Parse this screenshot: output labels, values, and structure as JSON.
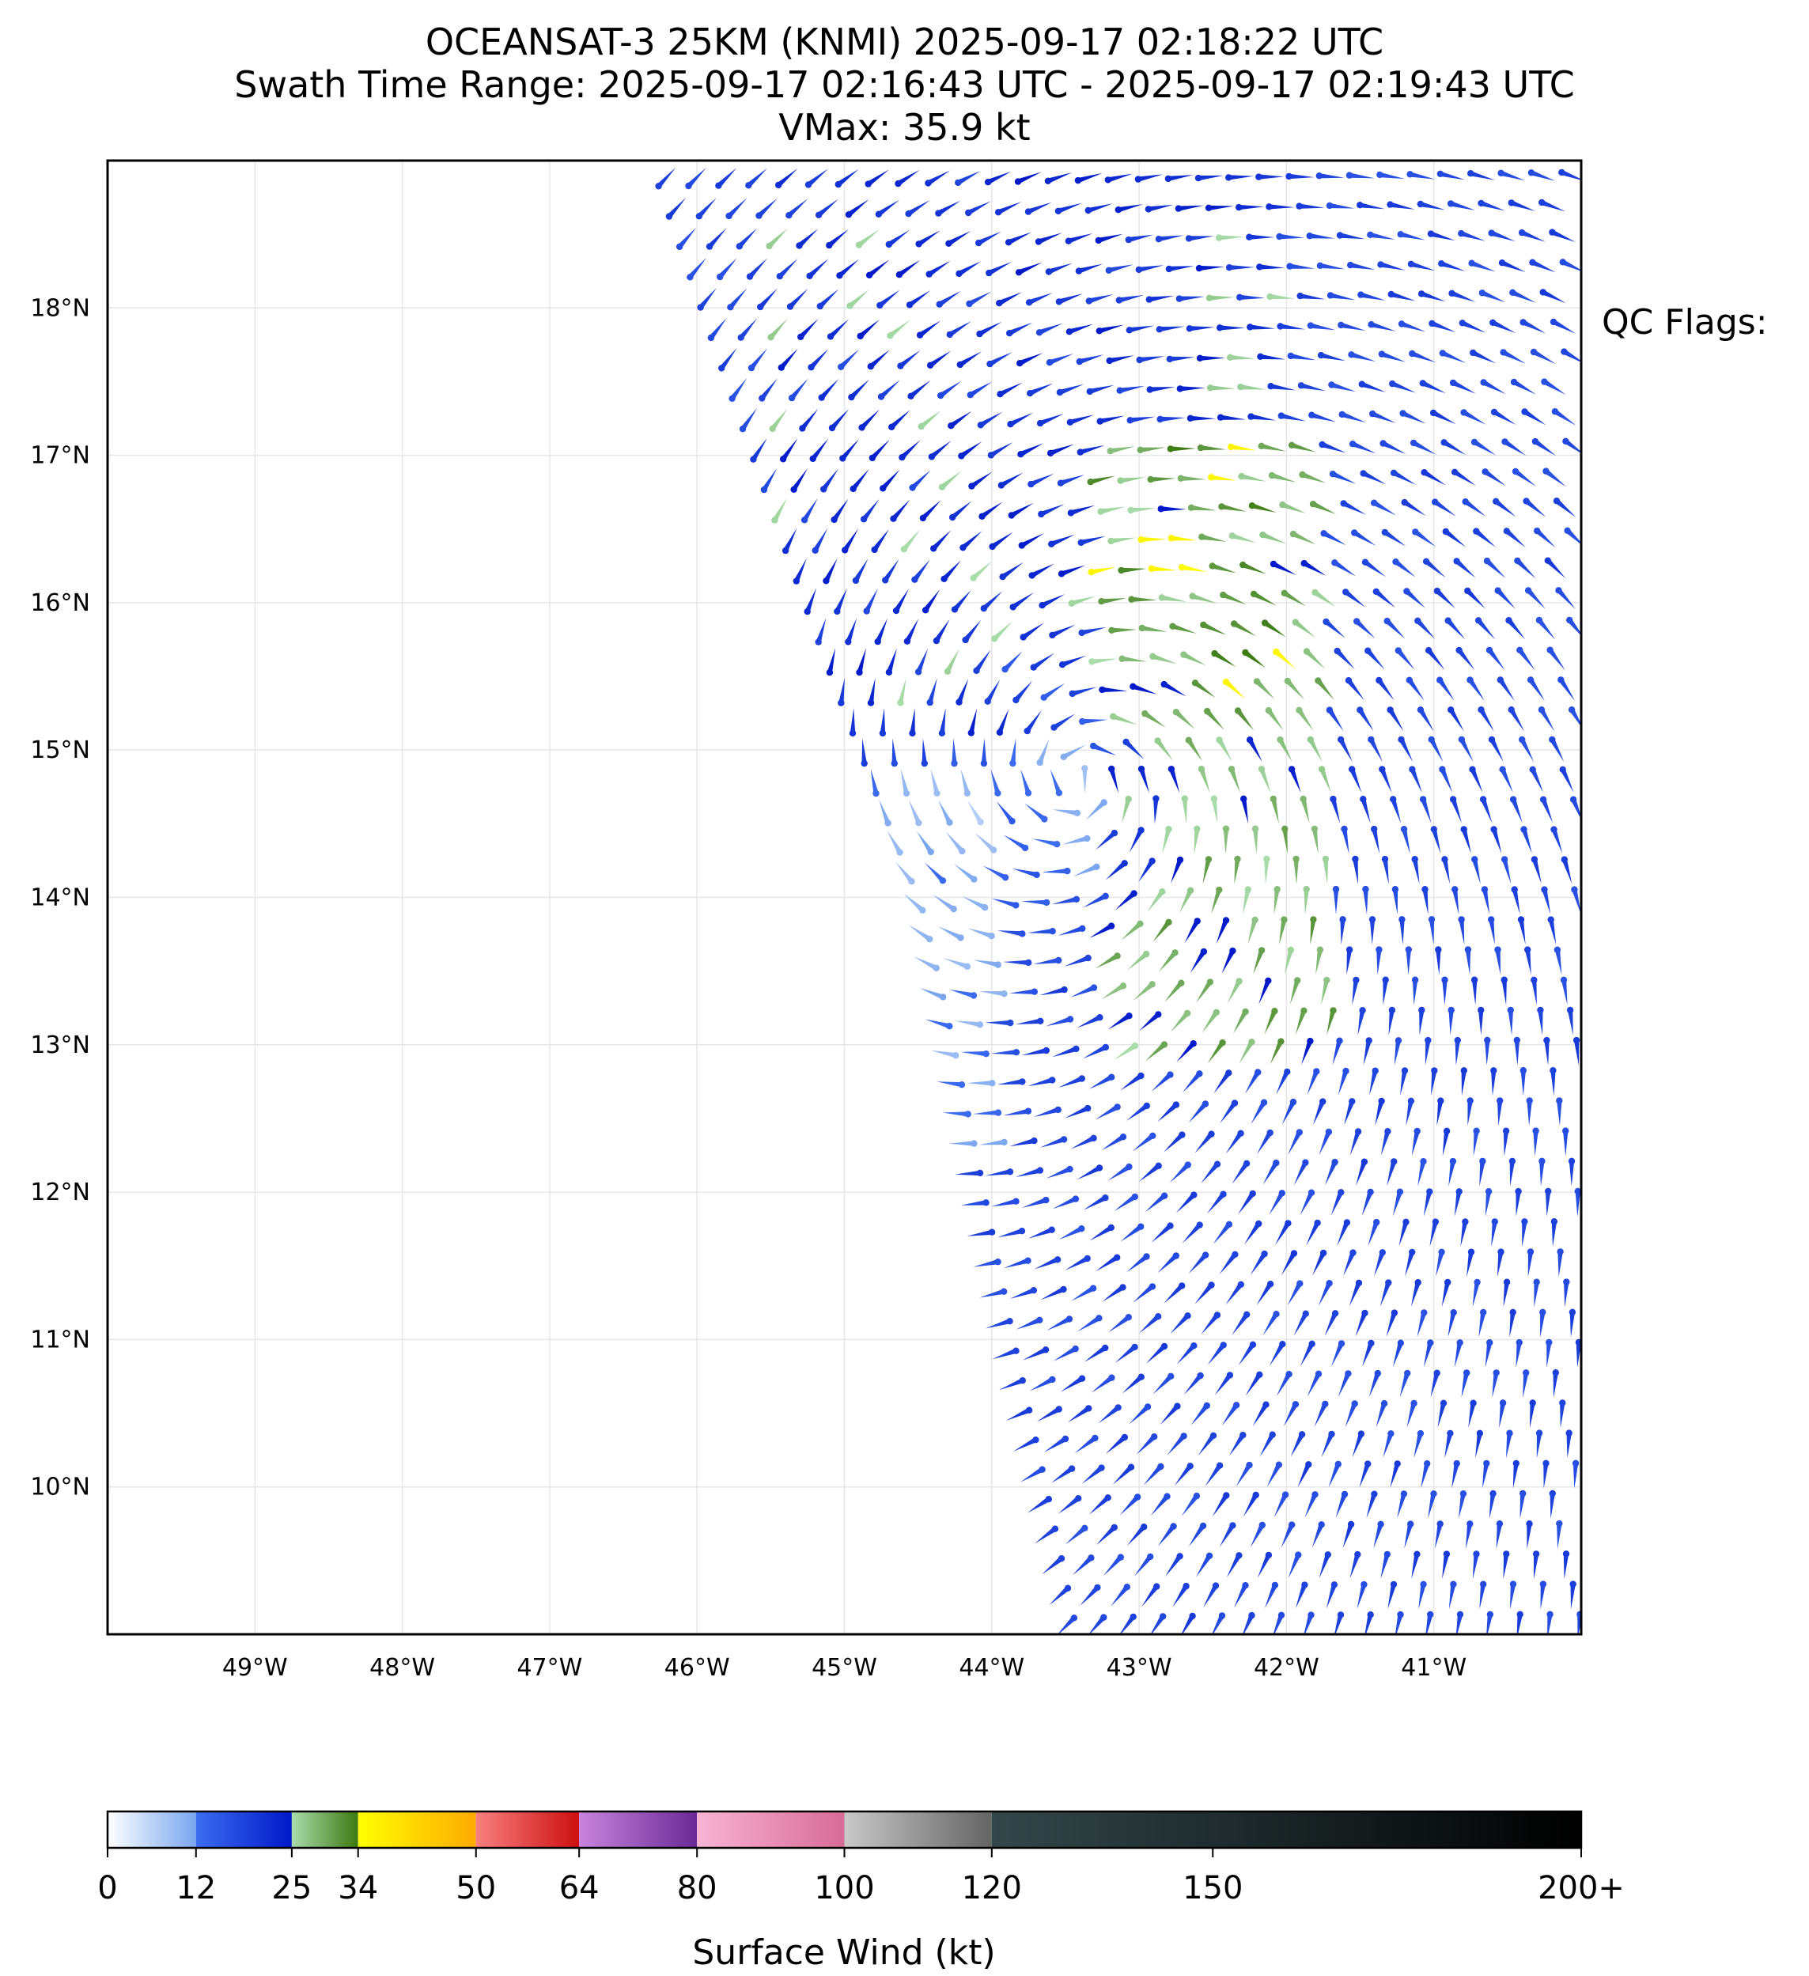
{
  "title": {
    "line1": "OCEANSAT-3 25KM (KNMI) 2025-09-17 02:18:22 UTC",
    "line2": "Swath Time Range: 2025-09-17 02:16:43 UTC - 2025-09-17 02:19:43 UTC",
    "line3": "VMax: 35.9 kt"
  },
  "qc_flags_label": "QC Flags:",
  "map": {
    "lon_range": [
      -50,
      -40
    ],
    "lat_range": [
      9,
      19
    ],
    "lon_ticks": [
      {
        "value": -49,
        "label": "49°W"
      },
      {
        "value": -48,
        "label": "48°W"
      },
      {
        "value": -47,
        "label": "47°W"
      },
      {
        "value": -46,
        "label": "46°W"
      },
      {
        "value": -45,
        "label": "45°W"
      },
      {
        "value": -44,
        "label": "44°W"
      },
      {
        "value": -43,
        "label": "43°W"
      },
      {
        "value": -42,
        "label": "42°W"
      },
      {
        "value": -41,
        "label": "41°W"
      }
    ],
    "lat_ticks": [
      {
        "value": 10,
        "label": "10°N"
      },
      {
        "value": 11,
        "label": "11°N"
      },
      {
        "value": 12,
        "label": "12°N"
      },
      {
        "value": 13,
        "label": "13°N"
      },
      {
        "value": 14,
        "label": "14°N"
      },
      {
        "value": 15,
        "label": "15°N"
      },
      {
        "value": 16,
        "label": "16°N"
      },
      {
        "value": 17,
        "label": "17°N"
      },
      {
        "value": 18,
        "label": "18°N"
      }
    ],
    "swath": {
      "west_edge": [
        [
          -46.3,
          19
        ],
        [
          -45.0,
          15.2
        ],
        [
          -44.6,
          14.0
        ],
        [
          -44.0,
          11.0
        ],
        [
          -43.55,
          9
        ]
      ],
      "east_edge_lon": -40.0
    },
    "wind_field": {
      "center": [
        -43.4,
        14.8
      ],
      "vmax_kt": 35.9,
      "strong_band_lon": [
        -43.3,
        -41.7
      ],
      "strong_band_lat": [
        12.8,
        17.2
      ],
      "ambient_kt": 16
    }
  },
  "colorbar": {
    "title": "Surface Wind (kt)",
    "max": 200,
    "ticks": [
      {
        "value": 0,
        "label": "0"
      },
      {
        "value": 12,
        "label": "12"
      },
      {
        "value": 25,
        "label": "25"
      },
      {
        "value": 34,
        "label": "34"
      },
      {
        "value": 50,
        "label": "50"
      },
      {
        "value": 64,
        "label": "64"
      },
      {
        "value": 80,
        "label": "80"
      },
      {
        "value": 100,
        "label": "100"
      },
      {
        "value": 120,
        "label": "120"
      },
      {
        "value": 150,
        "label": "150"
      },
      {
        "value": 200,
        "label": "200+"
      }
    ],
    "segments": [
      {
        "from": 0,
        "to": 12,
        "colors": [
          "#ffffff",
          "#7aa6ee"
        ]
      },
      {
        "from": 12,
        "to": 25,
        "colors": [
          "#3c6df0",
          "#0018c8"
        ]
      },
      {
        "from": 25,
        "to": 34,
        "colors": [
          "#a8dcaa",
          "#3c7a12"
        ]
      },
      {
        "from": 34,
        "to": 50,
        "colors": [
          "#ffff00",
          "#ffaa00"
        ]
      },
      {
        "from": 50,
        "to": 64,
        "colors": [
          "#f88080",
          "#cc1010"
        ]
      },
      {
        "from": 64,
        "to": 80,
        "colors": [
          "#c884dc",
          "#6a2a96"
        ]
      },
      {
        "from": 80,
        "to": 100,
        "colors": [
          "#f8b4d4",
          "#d86c96"
        ]
      },
      {
        "from": 100,
        "to": 120,
        "colors": [
          "#c8c8c8",
          "#646464"
        ]
      },
      {
        "from": 120,
        "to": 200,
        "colors": [
          "#33474a",
          "#000000"
        ]
      }
    ]
  }
}
